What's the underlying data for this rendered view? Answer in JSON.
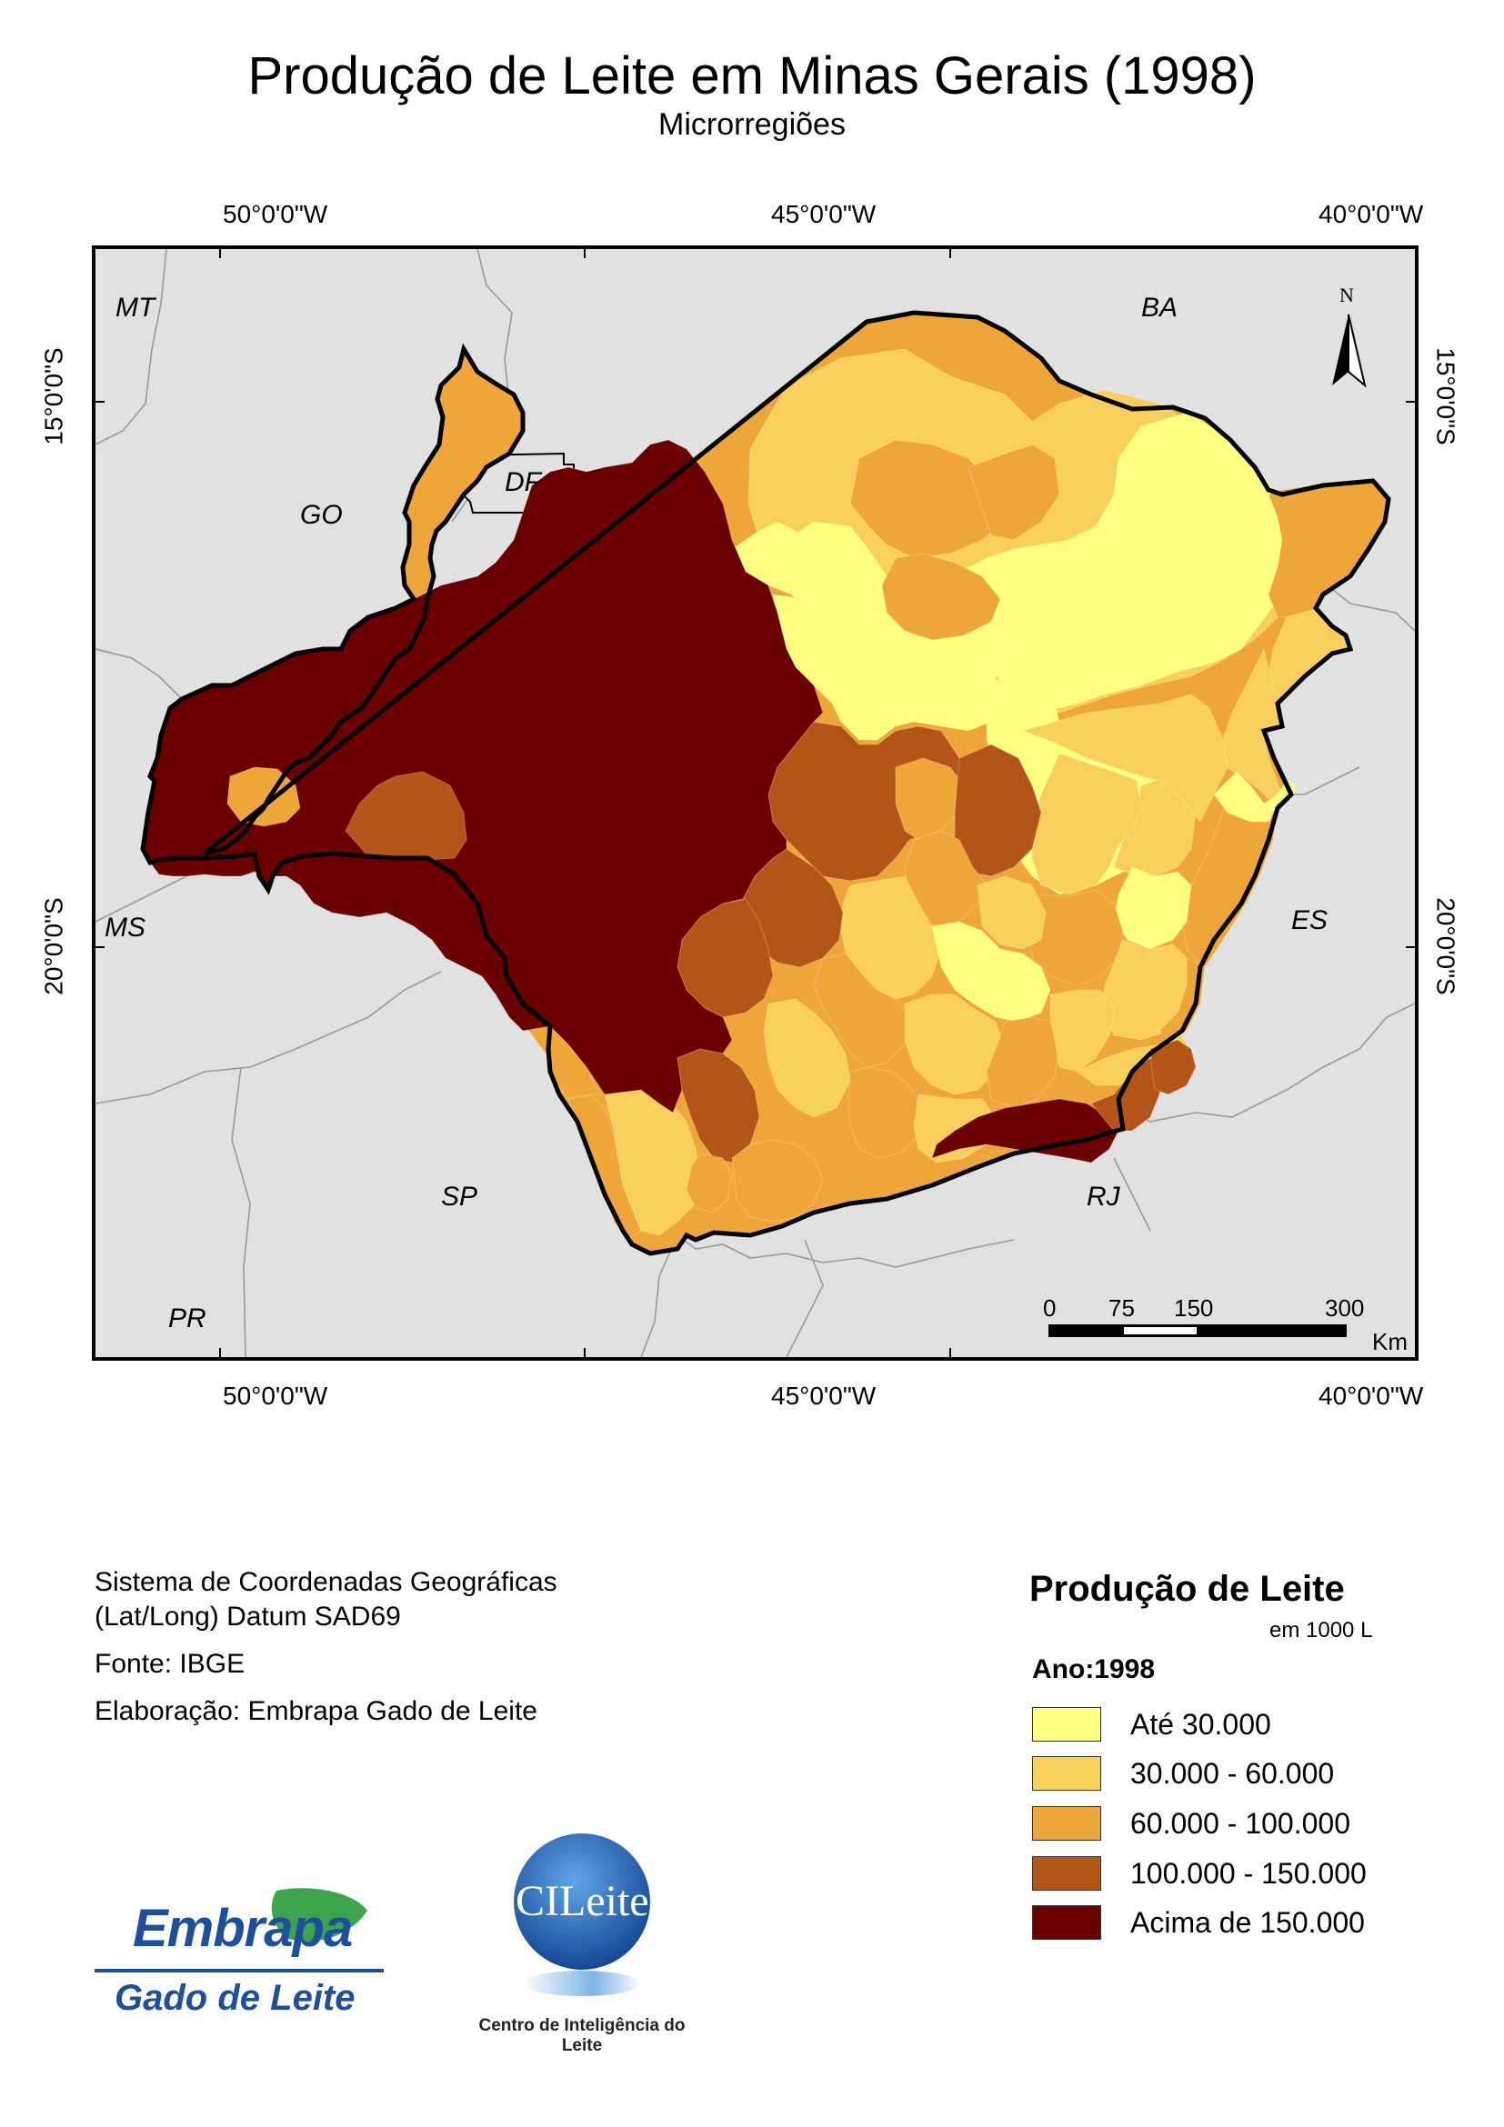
{
  "title": "Produção de Leite em Minas Gerais (1998)",
  "subtitle": "Microrregiões",
  "graticule": {
    "top_lon": [
      "50°0'0\"W",
      "45°0'0\"W",
      "40°0'0\"W"
    ],
    "bottom_lon": [
      "50°0'0\"W",
      "45°0'0\"W",
      "40°0'0\"W"
    ],
    "left_lat": [
      "15°0'0\"S",
      "20°0'0\"S"
    ],
    "right_lat": [
      "15°0'0\"S",
      "20°0'0\"S"
    ]
  },
  "states": {
    "mt": "MT",
    "ba": "BA",
    "go": "GO",
    "df": "DF",
    "ms": "MS",
    "es": "ES",
    "sp": "SP",
    "rj": "RJ",
    "pr": "PR"
  },
  "north_arrow": "N",
  "scale_bar": {
    "ticks": [
      "0",
      "75",
      "150",
      "300"
    ],
    "unit": "Km"
  },
  "info": {
    "coord_system_line1": "Sistema de Coordenadas Geográficas",
    "coord_system_line2": "(Lat/Long) Datum SAD69",
    "source": "Fonte: IBGE",
    "elaboration": "Elaboração: Embrapa Gado de Leite"
  },
  "legend": {
    "title": "Produção de Leite",
    "unit": "em 1000 L",
    "year": "Ano:1998",
    "classes": [
      {
        "label": "Até 30.000",
        "color": "#ffff80"
      },
      {
        "label": "30.000 - 60.000",
        "color": "#f9cf5c"
      },
      {
        "label": "60.000 - 100.000",
        "color": "#efa638"
      },
      {
        "label": "100.000 - 150.000",
        "color": "#b25516"
      },
      {
        "label": "Acima de 150.000",
        "color": "#6b0000"
      }
    ]
  },
  "logos": {
    "embrapa_word": "Embrapa",
    "embrapa_sub": "Gado de Leite",
    "cileite_word": "CILeite",
    "cileite_sub": "Centro de Inteligência do Leite"
  }
}
